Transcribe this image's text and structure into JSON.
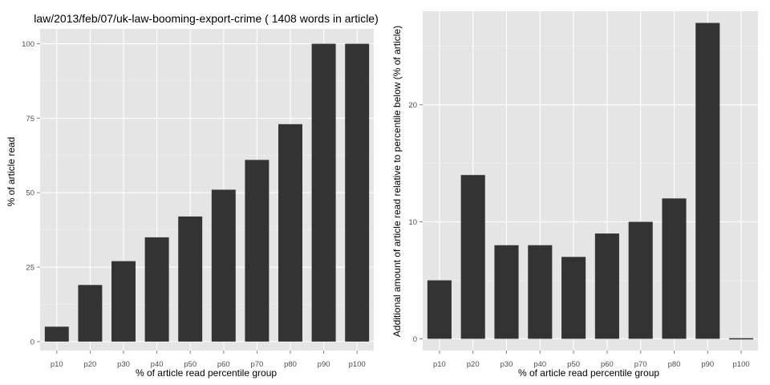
{
  "chart_data": [
    {
      "type": "bar",
      "title": "law/2013/feb/07/uk-law-booming-export-crime ( 1408 words in article)",
      "xlabel": "% of article read percentile group",
      "ylabel": "% of article read",
      "categories": [
        "p10",
        "p20",
        "p30",
        "p40",
        "p50",
        "p60",
        "p70",
        "p80",
        "p90",
        "p100"
      ],
      "values": [
        5,
        19,
        27,
        35,
        42,
        51,
        61,
        73,
        100,
        100
      ],
      "ylim": [
        -3,
        105
      ],
      "yticks": [
        0,
        25,
        50,
        75,
        100
      ],
      "grid": true,
      "bar_color": "#333333",
      "panel_color": "#e5e5e5"
    },
    {
      "type": "bar",
      "title": "",
      "xlabel": "% of article read percentile group",
      "ylabel": "Additional amount of article read relative to percentile below (% of article)",
      "categories": [
        "p10",
        "p20",
        "p30",
        "p40",
        "p50",
        "p60",
        "p70",
        "p80",
        "p90",
        "p100"
      ],
      "values": [
        5,
        14,
        8,
        8,
        7,
        9,
        10,
        12,
        27,
        0
      ],
      "ylim": [
        -1,
        28
      ],
      "yticks": [
        0,
        10,
        20
      ],
      "grid": true,
      "bar_color": "#333333",
      "panel_color": "#e5e5e5"
    }
  ]
}
